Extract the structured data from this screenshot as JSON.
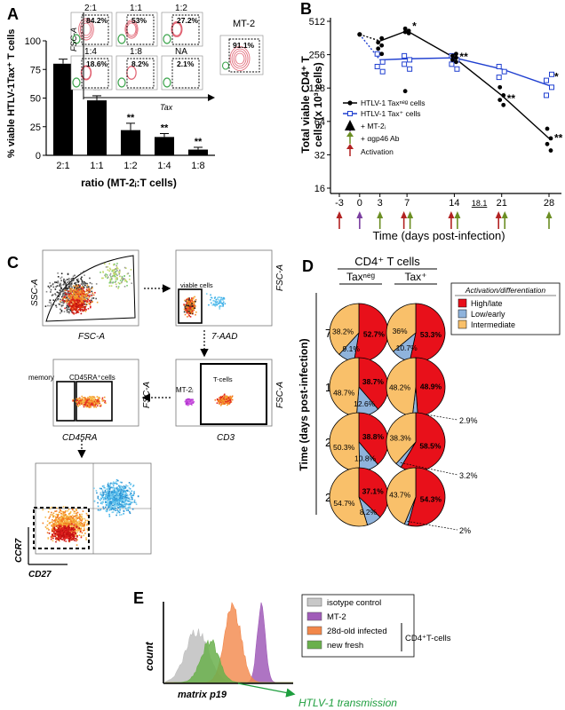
{
  "panels": {
    "a": "A",
    "b": "B",
    "c": "C",
    "d": "D",
    "e": "E"
  },
  "panel_a": {
    "ylabel": "% viable HTLV-1Tax⁺ T cells",
    "xlabel": "ratio (MT-2ᵢ:T cells)",
    "inset_y_axis": "FSC-A",
    "inset_x_axis": "Tax",
    "insets": [
      {
        "ratio": "2:1",
        "pct": "84.2%"
      },
      {
        "ratio": "1:1",
        "pct": "53%"
      },
      {
        "ratio": "1:2",
        "pct": "27.2%"
      },
      {
        "ratio": "1:4",
        "pct": "18.6%"
      },
      {
        "ratio": "1:8",
        "pct": "8.2%"
      },
      {
        "ratio": "NA",
        "pct": "2.1%"
      }
    ],
    "mt2_label": "MT-2",
    "mt2_pct": "91.1%",
    "sig": "**"
  },
  "panel_b": {
    "ylabel_line1": "Total viable CD4⁺ T",
    "ylabel_line2": "cells (x 10³ cells)",
    "xlabel": "Time (days post-infection)",
    "legend": {
      "neg": "HTLV-1 Taxⁿᵉᵍ cells",
      "pos": "HTLV-1 Tax⁺ cells",
      "mt2": "+ MT-2ᵢ",
      "ab": "+ αgp46 Ab",
      "act": "Activation"
    },
    "gap_label": "18.1",
    "star1": "*",
    "star2": "**",
    "arrow_colors": {
      "activation": "#b22222",
      "mt2": "#7b3fa0",
      "ab": "#6b8e23"
    }
  },
  "panel_c": {
    "plot1_x": "FSC-A",
    "plot1_y": "SSC-A",
    "plot2_x": "7-AAD",
    "plot2_y": "FSC-A",
    "plot2_gate": "viable cells",
    "plot3_x": "CD3",
    "plot3_y": "FSC-A",
    "plot3_gate1": "MT-2ᵢ",
    "plot3_gate2": "T-cells",
    "plot4_x": "CD45RA",
    "plot4_y": "FSC-A",
    "plot4_gate1": "memory",
    "plot4_gate2": "CD45RA⁺cells",
    "plot5_x": "CD27",
    "plot5_y": "CCR7"
  },
  "panel_d": {
    "header": "CD4⁺ T cells",
    "col_neg": "Taxⁿᵉᵍ",
    "col_pos": "Tax⁺",
    "ylabel": "Time (days post-infection)",
    "legend_title": "Activation/differentiation",
    "legend": [
      "High/late",
      "Low/early",
      "Intermediate"
    ],
    "colors": {
      "high": "#e8101a",
      "low": "#8fb3dc",
      "inter": "#f9c06a"
    },
    "rows": [
      {
        "day": "7",
        "neg": {
          "high": 52.7,
          "low": 9.1,
          "inter": 38.2,
          "high_l": "52.7%",
          "low_l": "9.1%",
          "inter_l": "38.2%"
        },
        "pos": {
          "high": 53.3,
          "low": 10.7,
          "inter": 36.0,
          "high_l": "53.3%",
          "low_l": "10.7%",
          "inter_l": "36%"
        }
      },
      {
        "day": "14",
        "neg": {
          "high": 38.7,
          "low": 12.6,
          "inter": 48.7,
          "high_l": "38.7%",
          "low_l": "12.6%",
          "inter_l": "48.7%"
        },
        "pos": {
          "high": 48.9,
          "low": 2.9,
          "inter": 48.2,
          "high_l": "48.9%",
          "low_l": "2.9%",
          "inter_l": "48.2%"
        }
      },
      {
        "day": "21",
        "neg": {
          "high": 38.8,
          "low": 10.8,
          "inter": 50.3,
          "high_l": "38.8%",
          "low_l": "10.8%",
          "inter_l": "50.3%"
        },
        "pos": {
          "high": 58.5,
          "low": 3.2,
          "inter": 38.3,
          "high_l": "58.5%",
          "low_l": "3.2%",
          "inter_l": "38.3%"
        }
      },
      {
        "day": "28",
        "neg": {
          "high": 37.1,
          "low": 8.2,
          "inter": 54.7,
          "high_l": "37.1%",
          "low_l": "8.2%",
          "inter_l": "54.7%"
        },
        "pos": {
          "high": 54.3,
          "low": 2.0,
          "inter": 43.7,
          "high_l": "54.3%",
          "low_l": "2%",
          "inter_l": "43.7%"
        }
      }
    ]
  },
  "panel_e": {
    "ylabel": "count",
    "xlabel": "matrix p19",
    "legend": [
      {
        "label": "isotype control",
        "color": "#c8c8c8"
      },
      {
        "label": "MT-2",
        "color": "#a05cb8"
      },
      {
        "label": "28d-old infected",
        "color": "#f2874a"
      },
      {
        "label": "new fresh",
        "color": "#6ab04c"
      }
    ],
    "group_label": "CD4⁺T-cells",
    "transmission": "HTLV-1 transmission",
    "transmission_color": "#1e9e3e"
  },
  "chart_data": [
    {
      "type": "bar",
      "categories": [
        "2:1",
        "1:1",
        "1:2",
        "1:4",
        "1:8"
      ],
      "values": [
        80,
        48,
        22,
        16,
        5
      ],
      "errors": [
        4,
        4,
        6,
        3,
        2
      ],
      "ylim": [
        0,
        100
      ],
      "yticks": [
        0,
        25,
        50,
        75,
        100
      ],
      "xlabel": "ratio (MT-2ᵢ:T cells)",
      "ylabel": "% viable HTLV-1Tax⁺ T cells"
    },
    {
      "type": "line",
      "yscale": "log2",
      "ylim": [
        16,
        512
      ],
      "yticks": [
        16,
        32,
        64,
        128,
        256,
        512
      ],
      "xticks": [
        -3,
        0,
        3,
        7,
        14,
        21,
        28
      ],
      "series": [
        {
          "name": "HTLV-1 Taxⁿᵉᵍ cells",
          "x": [
            0,
            3,
            7,
            14,
            21,
            28
          ],
          "y": [
            390,
            340,
            420,
            240,
            110,
            45
          ]
        },
        {
          "name": "HTLV-1 Tax⁺ cells",
          "x": [
            0,
            3,
            7,
            14,
            21,
            28
          ],
          "y": [
            390,
            230,
            235,
            240,
            190,
            135
          ]
        }
      ],
      "points_neg": [
        [
          3,
          360
        ],
        [
          3,
          330
        ],
        [
          3,
          310
        ],
        [
          3,
          290
        ],
        [
          3,
          260
        ],
        [
          7,
          440
        ],
        [
          7,
          420
        ],
        [
          7,
          410
        ],
        [
          7,
          400
        ],
        [
          7,
          120
        ],
        [
          14,
          260
        ],
        [
          14,
          250
        ],
        [
          14,
          240
        ],
        [
          14,
          230
        ],
        [
          14,
          220
        ],
        [
          21,
          130
        ],
        [
          21,
          110
        ],
        [
          21,
          100
        ],
        [
          21,
          90
        ],
        [
          28,
          55
        ],
        [
          28,
          45
        ],
        [
          28,
          40
        ],
        [
          28,
          35
        ]
      ],
      "points_pos": [
        [
          3,
          260
        ],
        [
          3,
          220
        ],
        [
          3,
          200
        ],
        [
          3,
          180
        ],
        [
          7,
          250
        ],
        [
          7,
          230
        ],
        [
          7,
          210
        ],
        [
          7,
          190
        ],
        [
          14,
          250
        ],
        [
          14,
          230
        ],
        [
          14,
          210
        ],
        [
          14,
          190
        ],
        [
          21,
          200
        ],
        [
          21,
          180
        ],
        [
          21,
          160
        ],
        [
          28,
          170
        ],
        [
          28,
          150
        ],
        [
          28,
          130
        ],
        [
          28,
          110
        ]
      ],
      "arrows": [
        {
          "x": -3,
          "kinds": [
            "act"
          ]
        },
        {
          "x": 0,
          "kinds": [
            "mt2"
          ]
        },
        {
          "x": 3,
          "kinds": [
            "ab"
          ]
        },
        {
          "x": 7,
          "kinds": [
            "act",
            "ab"
          ]
        },
        {
          "x": 14,
          "kinds": [
            "act",
            "ab"
          ]
        },
        {
          "x": 21,
          "kinds": [
            "act",
            "ab"
          ]
        },
        {
          "x": 28,
          "kinds": [
            "ab"
          ]
        }
      ]
    }
  ]
}
